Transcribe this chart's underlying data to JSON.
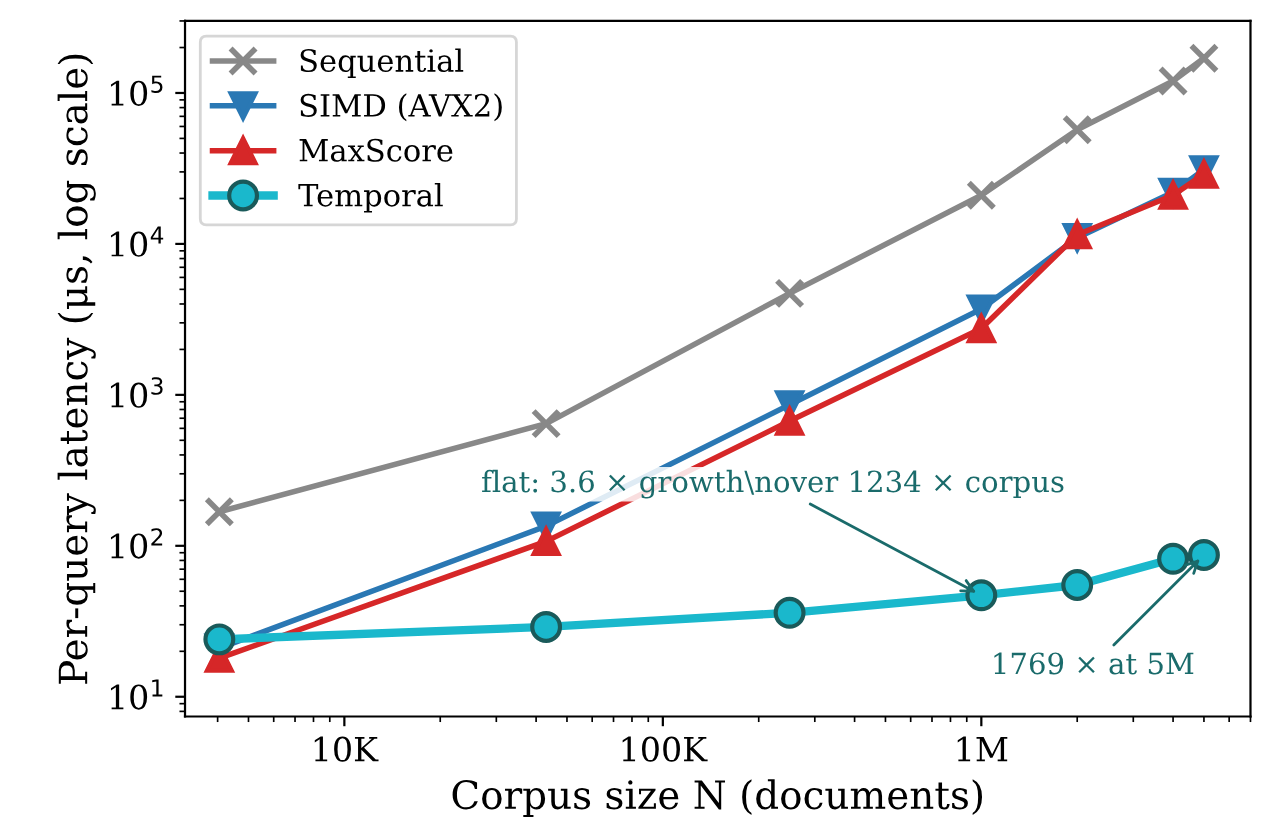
{
  "chart_data": {
    "type": "line",
    "xlabel": "Corpus size N (documents)",
    "ylabel": "Per-query latency (μs, log scale)",
    "log": "xy",
    "grid": false,
    "legend": "top left",
    "x": [
      4050,
      43000,
      250000,
      1000000,
      2000000,
      4000000,
      5000000
    ],
    "xlim": [
      3160,
      7000000
    ],
    "ylim": [
      7.4,
      300000
    ],
    "xticks": [
      {
        "value": 10000,
        "label": "10K"
      },
      {
        "value": 100000,
        "label": "100K"
      },
      {
        "value": 1000000,
        "label": "1M"
      }
    ],
    "yticks": [
      {
        "value": 10,
        "label": "10$^{1}$"
      },
      {
        "value": 100,
        "label": "10$^{2}$"
      },
      {
        "value": 1000,
        "label": "10$^{3}$"
      },
      {
        "value": 10000,
        "label": "10$^{4}$"
      },
      {
        "value": 100000,
        "label": "10$^{5}$"
      }
    ],
    "series": [
      {
        "name": "Sequential",
        "color": "#888888",
        "marker": "cross",
        "values": [
          168,
          645,
          4700,
          21000,
          57000,
          120000,
          170000
        ]
      },
      {
        "name": "SIMD (AVX2)",
        "color": "#2a78b4",
        "marker": "triangle_down",
        "values": [
          21,
          135,
          860,
          3700,
          11000,
          22000,
          31000
        ]
      },
      {
        "name": "MaxScore",
        "color": "#d62728",
        "marker": "triangle",
        "values": [
          18,
          107,
          670,
          2750,
          11500,
          21000,
          29000
        ]
      },
      {
        "name": "Temporal",
        "color": "#1ab8cc",
        "marker": "circle",
        "values": [
          24,
          29,
          36,
          47,
          55,
          82,
          87
        ]
      }
    ],
    "annotations": [
      {
        "text": "flat: 3.6 × growth\\nover 1234 × corpus",
        "x": 1000000,
        "y": 47
      },
      {
        "text": "1769 × at 5M",
        "x": 5000000,
        "y": 87
      }
    ]
  }
}
